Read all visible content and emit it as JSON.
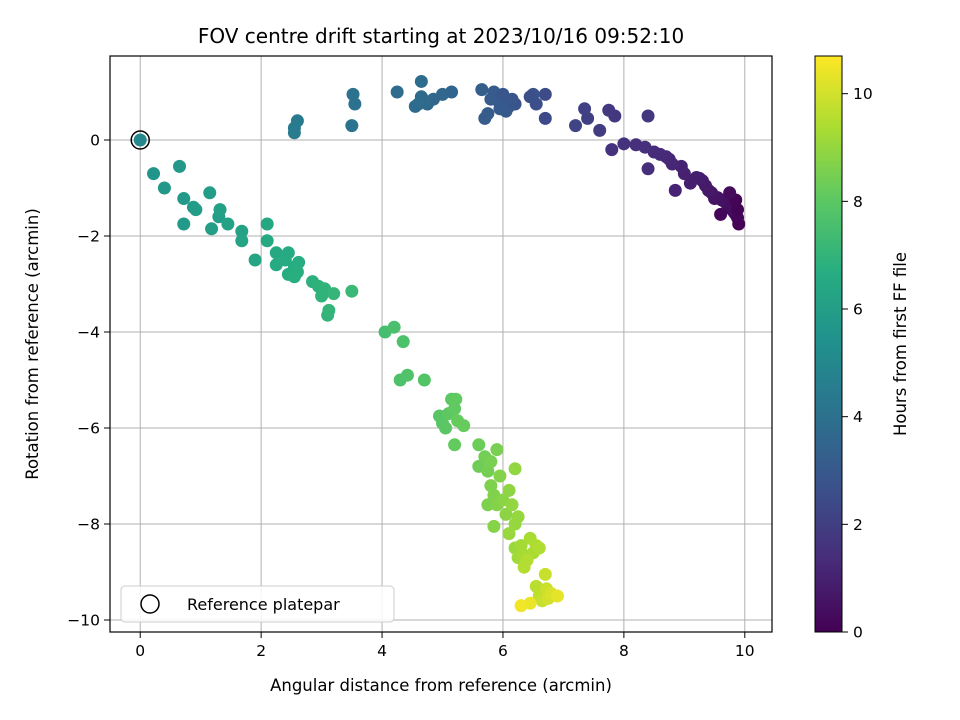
{
  "chart_data": {
    "type": "scatter",
    "title": "FOV centre drift starting at 2023/10/16 09:52:10",
    "xlabel": "Angular distance from reference (arcmin)",
    "ylabel": "Rotation from reference (arcmin)",
    "xlim": [
      -0.5,
      10.45
    ],
    "ylim": [
      -10.25,
      1.75
    ],
    "xticks": [
      0,
      2,
      4,
      6,
      8,
      10
    ],
    "yticks": [
      -10,
      -8,
      -6,
      -4,
      -2,
      0
    ],
    "xtick_labels": [
      "0",
      "2",
      "4",
      "6",
      "8",
      "10"
    ],
    "ytick_labels": [
      "−10",
      "−8",
      "−6",
      "−4",
      "−2",
      "0"
    ],
    "grid": true,
    "colormap": "viridis",
    "colorbar": {
      "label": "Hours from first FF file",
      "range": [
        0,
        10.7
      ],
      "ticks": [
        0,
        2,
        4,
        6,
        8,
        10
      ],
      "tick_labels": [
        "0",
        "2",
        "4",
        "6",
        "8",
        "10"
      ]
    },
    "reference": {
      "x": 0,
      "y": 0,
      "label": "Reference platepar"
    },
    "legend_location": "lower-left",
    "points": [
      [
        9.9,
        -1.75,
        0.05
      ],
      [
        9.88,
        -1.62,
        0.1
      ],
      [
        9.85,
        -1.55,
        0.15
      ],
      [
        9.82,
        -1.5,
        0.2
      ],
      [
        9.8,
        -1.45,
        0.25
      ],
      [
        9.78,
        -1.4,
        0.3
      ],
      [
        9.75,
        -1.42,
        0.35
      ],
      [
        9.72,
        -1.35,
        0.4
      ],
      [
        9.68,
        -1.3,
        0.45
      ],
      [
        9.62,
        -1.25,
        0.5
      ],
      [
        9.55,
        -1.2,
        0.55
      ],
      [
        9.5,
        -1.22,
        0.6
      ],
      [
        9.45,
        -1.1,
        0.65
      ],
      [
        9.4,
        -1.05,
        0.7
      ],
      [
        9.35,
        -0.95,
        0.75
      ],
      [
        9.3,
        -0.85,
        0.8
      ],
      [
        9.25,
        -0.8,
        0.85
      ],
      [
        9.2,
        -0.78,
        0.9
      ],
      [
        9.1,
        -0.9,
        0.95
      ],
      [
        9.0,
        -0.7,
        1.0
      ],
      [
        8.95,
        -0.55,
        1.05
      ],
      [
        8.85,
        -1.05,
        1.1
      ],
      [
        8.8,
        -0.5,
        1.15
      ],
      [
        8.75,
        -0.4,
        1.2
      ],
      [
        8.7,
        -0.35,
        1.25
      ],
      [
        8.6,
        -0.3,
        1.3
      ],
      [
        8.5,
        -0.25,
        1.35
      ],
      [
        8.4,
        -0.6,
        1.4
      ],
      [
        8.35,
        -0.15,
        1.45
      ],
      [
        8.2,
        -0.1,
        1.5
      ],
      [
        8.0,
        -0.08,
        1.55
      ],
      [
        9.85,
        -1.25,
        0.12
      ],
      [
        9.88,
        -1.45,
        0.08
      ],
      [
        9.75,
        -1.1,
        0.3
      ],
      [
        9.6,
        -1.55,
        0.2
      ],
      [
        7.8,
        -0.2,
        1.6
      ],
      [
        7.85,
        0.5,
        1.7
      ],
      [
        7.75,
        0.62,
        1.8
      ],
      [
        7.6,
        0.2,
        1.9
      ],
      [
        7.4,
        0.45,
        2.0
      ],
      [
        7.35,
        0.65,
        2.1
      ],
      [
        7.2,
        0.3,
        2.2
      ],
      [
        8.4,
        0.5,
        1.75
      ],
      [
        6.7,
        0.45,
        2.4
      ],
      [
        6.7,
        0.95,
        2.5
      ],
      [
        6.55,
        0.75,
        2.6
      ],
      [
        6.5,
        0.95,
        2.7
      ],
      [
        6.45,
        0.9,
        2.65
      ],
      [
        6.2,
        0.75,
        2.8
      ],
      [
        6.15,
        0.85,
        2.85
      ],
      [
        6.1,
        0.7,
        2.9
      ],
      [
        6.0,
        0.8,
        2.95
      ],
      [
        5.95,
        0.75,
        3.0
      ],
      [
        5.9,
        0.9,
        3.05
      ],
      [
        5.85,
        1.0,
        3.1
      ],
      [
        5.8,
        0.85,
        3.1
      ],
      [
        5.75,
        0.55,
        3.15
      ],
      [
        5.7,
        0.45,
        3.15
      ],
      [
        5.65,
        1.05,
        3.2
      ],
      [
        6.0,
        0.95,
        2.9
      ],
      [
        6.05,
        0.6,
        3.0
      ],
      [
        5.95,
        0.65,
        3.05
      ],
      [
        5.15,
        1.0,
        3.5
      ],
      [
        5.0,
        0.95,
        3.55
      ],
      [
        4.85,
        0.85,
        3.6
      ],
      [
        4.75,
        0.75,
        3.65
      ],
      [
        4.7,
        0.82,
        3.7
      ],
      [
        4.65,
        0.9,
        3.72
      ],
      [
        4.6,
        0.75,
        3.75
      ],
      [
        4.55,
        0.7,
        3.78
      ],
      [
        4.65,
        1.22,
        3.8
      ],
      [
        4.25,
        1.0,
        3.85
      ],
      [
        3.55,
        0.75,
        4.0
      ],
      [
        3.52,
        0.95,
        4.05
      ],
      [
        3.5,
        0.3,
        4.1
      ],
      [
        2.6,
        0.4,
        4.4
      ],
      [
        2.55,
        0.25,
        4.45
      ],
      [
        2.55,
        0.15,
        4.5
      ],
      [
        0.0,
        0.0,
        5.0
      ],
      [
        0.22,
        -0.7,
        5.6
      ],
      [
        0.4,
        -1.0,
        5.7
      ],
      [
        0.65,
        -0.55,
        5.65
      ],
      [
        0.72,
        -1.22,
        5.75
      ],
      [
        0.72,
        -1.75,
        5.8
      ],
      [
        0.88,
        -1.4,
        5.85
      ],
      [
        0.92,
        -1.45,
        5.9
      ],
      [
        1.15,
        -1.1,
        5.95
      ],
      [
        1.18,
        -1.85,
        6.0
      ],
      [
        1.3,
        -1.6,
        6.05
      ],
      [
        1.32,
        -1.45,
        6.1
      ],
      [
        1.45,
        -1.75,
        6.15
      ],
      [
        1.68,
        -1.9,
        6.2
      ],
      [
        1.68,
        -2.1,
        6.25
      ],
      [
        1.9,
        -2.5,
        6.3
      ],
      [
        2.1,
        -1.75,
        6.4
      ],
      [
        2.1,
        -2.1,
        6.45
      ],
      [
        2.25,
        -2.35,
        6.5
      ],
      [
        2.25,
        -2.6,
        6.55
      ],
      [
        2.4,
        -2.5,
        6.6
      ],
      [
        2.45,
        -2.35,
        6.6
      ],
      [
        2.45,
        -2.8,
        6.65
      ],
      [
        2.55,
        -2.65,
        6.7
      ],
      [
        2.62,
        -2.55,
        6.7
      ],
      [
        2.55,
        -2.85,
        6.75
      ],
      [
        2.6,
        -2.75,
        6.75
      ],
      [
        2.85,
        -2.95,
        6.85
      ],
      [
        2.95,
        -3.05,
        6.9
      ],
      [
        3.0,
        -3.25,
        6.95
      ],
      [
        3.05,
        -3.1,
        6.95
      ],
      [
        3.1,
        -3.65,
        7.0
      ],
      [
        3.12,
        -3.55,
        7.05
      ],
      [
        3.2,
        -3.2,
        7.1
      ],
      [
        3.5,
        -3.15,
        7.2
      ],
      [
        4.05,
        -4.0,
        7.5
      ],
      [
        4.2,
        -3.9,
        7.6
      ],
      [
        4.35,
        -4.2,
        7.65
      ],
      [
        4.3,
        -5.0,
        7.7
      ],
      [
        4.42,
        -4.9,
        7.75
      ],
      [
        4.7,
        -5.0,
        7.8
      ],
      [
        4.95,
        -5.75,
        7.9
      ],
      [
        5.0,
        -5.9,
        7.95
      ],
      [
        5.05,
        -6.0,
        8.0
      ],
      [
        5.1,
        -5.7,
        8.05
      ],
      [
        5.15,
        -5.4,
        8.05
      ],
      [
        5.2,
        -5.6,
        8.1
      ],
      [
        5.22,
        -5.4,
        8.1
      ],
      [
        5.2,
        -6.35,
        8.15
      ],
      [
        5.25,
        -5.85,
        8.2
      ],
      [
        5.35,
        -5.95,
        8.2
      ],
      [
        5.6,
        -6.35,
        8.3
      ],
      [
        5.6,
        -6.8,
        8.35
      ],
      [
        5.7,
        -6.6,
        8.4
      ],
      [
        5.75,
        -6.9,
        8.45
      ],
      [
        5.8,
        -6.7,
        8.5
      ],
      [
        5.9,
        -6.45,
        8.5
      ],
      [
        5.75,
        -7.6,
        8.6
      ],
      [
        5.8,
        -7.2,
        8.6
      ],
      [
        5.85,
        -7.4,
        8.65
      ],
      [
        5.9,
        -7.6,
        8.7
      ],
      [
        5.95,
        -7.0,
        8.7
      ],
      [
        5.85,
        -8.05,
        8.75
      ],
      [
        6.0,
        -7.5,
        8.8
      ],
      [
        6.05,
        -7.8,
        8.85
      ],
      [
        6.1,
        -7.3,
        8.9
      ],
      [
        6.2,
        -6.85,
        8.95
      ],
      [
        6.15,
        -7.6,
        8.95
      ],
      [
        6.2,
        -8.0,
        9.0
      ],
      [
        6.25,
        -7.85,
        9.0
      ],
      [
        6.1,
        -8.2,
        9.05
      ],
      [
        6.2,
        -8.5,
        9.1
      ],
      [
        6.25,
        -8.7,
        9.2
      ],
      [
        6.3,
        -8.45,
        9.25
      ],
      [
        6.35,
        -8.65,
        9.3
      ],
      [
        6.45,
        -8.3,
        9.35
      ],
      [
        6.5,
        -8.6,
        9.35
      ],
      [
        6.55,
        -8.45,
        9.4
      ],
      [
        6.6,
        -8.5,
        9.45
      ],
      [
        6.35,
        -8.9,
        9.5
      ],
      [
        6.4,
        -8.75,
        9.5
      ],
      [
        6.55,
        -9.3,
        9.6
      ],
      [
        6.6,
        -9.5,
        9.7
      ],
      [
        6.65,
        -9.6,
        9.8
      ],
      [
        6.7,
        -9.05,
        9.85
      ],
      [
        6.72,
        -9.35,
        9.9
      ],
      [
        6.75,
        -9.55,
        10.0
      ],
      [
        6.8,
        -9.45,
        10.1
      ],
      [
        6.9,
        -9.5,
        10.3
      ],
      [
        6.45,
        -9.65,
        10.4
      ],
      [
        6.3,
        -9.7,
        10.5
      ]
    ]
  }
}
